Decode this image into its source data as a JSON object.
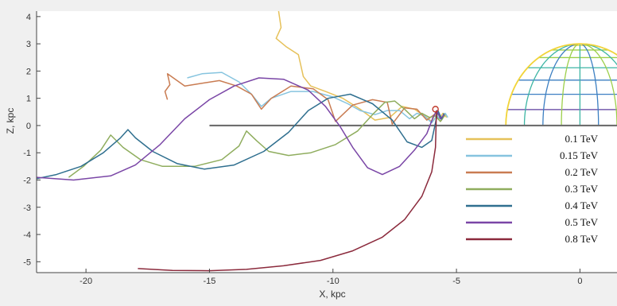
{
  "chart_data": {
    "type": "line",
    "title": "",
    "xlabel": "X, kpc",
    "ylabel": "Z, kpc",
    "xlim": [
      -22,
      1.5
    ],
    "ylim": [
      -5.4,
      4.2
    ],
    "x_ticks": [
      -20,
      -15,
      -10,
      -5,
      0
    ],
    "y_ticks": [
      4,
      3,
      2,
      1,
      0,
      -1,
      -2,
      -3,
      -4,
      -5
    ],
    "grid": false,
    "legend_position": "bottom-right",
    "galactic_plane": {
      "x_start": -15,
      "x_end": 1.5,
      "z": 0,
      "color": "#6e6e6e"
    },
    "source_marker": {
      "x": -5.85,
      "z": 0.6,
      "color": "#c0392b"
    },
    "halo_sphere": {
      "center_x": 0,
      "center_z": 0,
      "radius": 3,
      "colormap": [
        "#f2d43a",
        "#9ccf4a",
        "#3db5a4",
        "#3c7fc2",
        "#5b3d9e"
      ]
    },
    "series": [
      {
        "name": "0.1 TeV",
        "color": "#e6c15a",
        "points": [
          [
            -12.2,
            4.2
          ],
          [
            -12.1,
            3.6
          ],
          [
            -12.3,
            3.2
          ],
          [
            -11.9,
            2.9
          ],
          [
            -11.4,
            2.6
          ],
          [
            -11.3,
            2.2
          ],
          [
            -11.2,
            1.8
          ],
          [
            -10.9,
            1.45
          ],
          [
            -10.3,
            1.25
          ],
          [
            -9.6,
            1.0
          ],
          [
            -8.9,
            0.6
          ],
          [
            -8.3,
            0.2
          ],
          [
            -7.7,
            0.3
          ],
          [
            -7.2,
            0.7
          ],
          [
            -6.7,
            0.6
          ],
          [
            -6.3,
            0.35
          ],
          [
            -6.0,
            0.15
          ],
          [
            -5.85,
            0.45
          ],
          [
            -5.7,
            0.25
          ],
          [
            -5.55,
            0.45
          ],
          [
            -5.4,
            0.3
          ]
        ]
      },
      {
        "name": "0.15 TeV",
        "color": "#86c4df",
        "points": [
          [
            -15.9,
            1.75
          ],
          [
            -15.3,
            1.9
          ],
          [
            -14.5,
            1.95
          ],
          [
            -13.8,
            1.6
          ],
          [
            -13.3,
            1.15
          ],
          [
            -12.9,
            0.7
          ],
          [
            -12.5,
            1.0
          ],
          [
            -11.7,
            1.25
          ],
          [
            -10.8,
            1.25
          ],
          [
            -10.0,
            1.05
          ],
          [
            -9.4,
            0.8
          ],
          [
            -8.9,
            0.55
          ],
          [
            -8.3,
            0.4
          ],
          [
            -7.8,
            0.55
          ],
          [
            -7.3,
            0.55
          ],
          [
            -6.9,
            0.25
          ],
          [
            -6.6,
            0.45
          ],
          [
            -6.3,
            0.35
          ],
          [
            -6.0,
            0.1
          ],
          [
            -5.8,
            0.35
          ],
          [
            -5.6,
            0.2
          ],
          [
            -5.45,
            0.45
          ],
          [
            -5.35,
            0.3
          ]
        ]
      },
      {
        "name": "0.2 TeV",
        "color": "#c97c52",
        "points": [
          [
            -16.7,
            0.95
          ],
          [
            -16.8,
            1.25
          ],
          [
            -16.6,
            1.5
          ],
          [
            -16.7,
            1.9
          ],
          [
            -16.0,
            1.45
          ],
          [
            -15.3,
            1.55
          ],
          [
            -14.6,
            1.65
          ],
          [
            -13.9,
            1.45
          ],
          [
            -13.3,
            1.15
          ],
          [
            -12.9,
            0.6
          ],
          [
            -12.5,
            1.0
          ],
          [
            -11.7,
            1.45
          ],
          [
            -10.8,
            1.35
          ],
          [
            -10.2,
            0.95
          ],
          [
            -9.9,
            0.15
          ],
          [
            -9.2,
            0.75
          ],
          [
            -8.4,
            0.95
          ],
          [
            -7.8,
            0.85
          ],
          [
            -7.6,
            0.05
          ],
          [
            -7.1,
            0.65
          ],
          [
            -6.6,
            0.6
          ],
          [
            -6.2,
            0.2
          ],
          [
            -5.9,
            0.4
          ],
          [
            -5.65,
            0.15
          ],
          [
            -5.5,
            0.35
          ]
        ]
      },
      {
        "name": "0.3 TeV",
        "color": "#8fad5e",
        "points": [
          [
            -20.7,
            -1.9
          ],
          [
            -20.1,
            -1.5
          ],
          [
            -19.4,
            -0.9
          ],
          [
            -19.0,
            -0.35
          ],
          [
            -18.5,
            -0.8
          ],
          [
            -17.8,
            -1.25
          ],
          [
            -16.9,
            -1.5
          ],
          [
            -15.6,
            -1.5
          ],
          [
            -14.5,
            -1.25
          ],
          [
            -13.8,
            -0.75
          ],
          [
            -13.5,
            -0.2
          ],
          [
            -13.1,
            -0.55
          ],
          [
            -12.6,
            -0.95
          ],
          [
            -11.8,
            -1.1
          ],
          [
            -10.9,
            -1.0
          ],
          [
            -9.9,
            -0.7
          ],
          [
            -9.0,
            -0.2
          ],
          [
            -8.4,
            0.4
          ],
          [
            -7.9,
            0.85
          ],
          [
            -7.5,
            0.9
          ],
          [
            -7.1,
            0.6
          ],
          [
            -6.7,
            0.25
          ],
          [
            -6.4,
            0.45
          ],
          [
            -6.1,
            0.3
          ],
          [
            -5.85,
            0.35
          ],
          [
            -5.65,
            0.15
          ],
          [
            -5.45,
            0.4
          ]
        ]
      },
      {
        "name": "0.4 TeV",
        "color": "#2f6f8f",
        "points": [
          [
            -22.0,
            -1.95
          ],
          [
            -21.2,
            -1.8
          ],
          [
            -20.2,
            -1.5
          ],
          [
            -19.3,
            -1.0
          ],
          [
            -18.6,
            -0.45
          ],
          [
            -18.3,
            -0.15
          ],
          [
            -18.0,
            -0.45
          ],
          [
            -17.3,
            -0.95
          ],
          [
            -16.3,
            -1.4
          ],
          [
            -15.2,
            -1.6
          ],
          [
            -14.0,
            -1.45
          ],
          [
            -12.8,
            -0.95
          ],
          [
            -11.8,
            -0.25
          ],
          [
            -11.0,
            0.55
          ],
          [
            -10.2,
            1.0
          ],
          [
            -9.3,
            1.15
          ],
          [
            -8.4,
            0.8
          ],
          [
            -7.6,
            0.2
          ],
          [
            -7.0,
            -0.6
          ],
          [
            -6.4,
            -0.8
          ],
          [
            -6.0,
            -0.55
          ],
          [
            -5.85,
            0.1
          ],
          [
            -5.75,
            0.55
          ],
          [
            -5.6,
            0.25
          ],
          [
            -5.5,
            0.45
          ]
        ]
      },
      {
        "name": "0.5 TeV",
        "color": "#7a46a6",
        "points": [
          [
            -22.0,
            -1.9
          ],
          [
            -20.5,
            -2.0
          ],
          [
            -19.0,
            -1.85
          ],
          [
            -18.0,
            -1.45
          ],
          [
            -17.0,
            -0.7
          ],
          [
            -16.0,
            0.25
          ],
          [
            -15.0,
            0.95
          ],
          [
            -14.0,
            1.45
          ],
          [
            -13.0,
            1.75
          ],
          [
            -12.0,
            1.7
          ],
          [
            -11.0,
            1.3
          ],
          [
            -10.3,
            0.7
          ],
          [
            -9.7,
            -0.05
          ],
          [
            -9.2,
            -0.8
          ],
          [
            -8.6,
            -1.55
          ],
          [
            -8.0,
            -1.8
          ],
          [
            -7.3,
            -1.5
          ],
          [
            -6.7,
            -0.9
          ],
          [
            -6.2,
            -0.3
          ],
          [
            -5.95,
            0.3
          ],
          [
            -5.8,
            0.55
          ],
          [
            -5.65,
            0.25
          ],
          [
            -5.5,
            0.4
          ]
        ]
      },
      {
        "name": "0.8 TeV",
        "color": "#8b2a3c",
        "points": [
          [
            -17.9,
            -5.25
          ],
          [
            -16.5,
            -5.32
          ],
          [
            -15.0,
            -5.33
          ],
          [
            -13.5,
            -5.28
          ],
          [
            -12.0,
            -5.15
          ],
          [
            -10.5,
            -4.95
          ],
          [
            -9.2,
            -4.6
          ],
          [
            -8.0,
            -4.1
          ],
          [
            -7.1,
            -3.45
          ],
          [
            -6.4,
            -2.6
          ],
          [
            -6.0,
            -1.7
          ],
          [
            -5.85,
            -0.8
          ],
          [
            -5.82,
            0.2
          ],
          [
            -5.8,
            0.55
          ]
        ]
      }
    ]
  }
}
